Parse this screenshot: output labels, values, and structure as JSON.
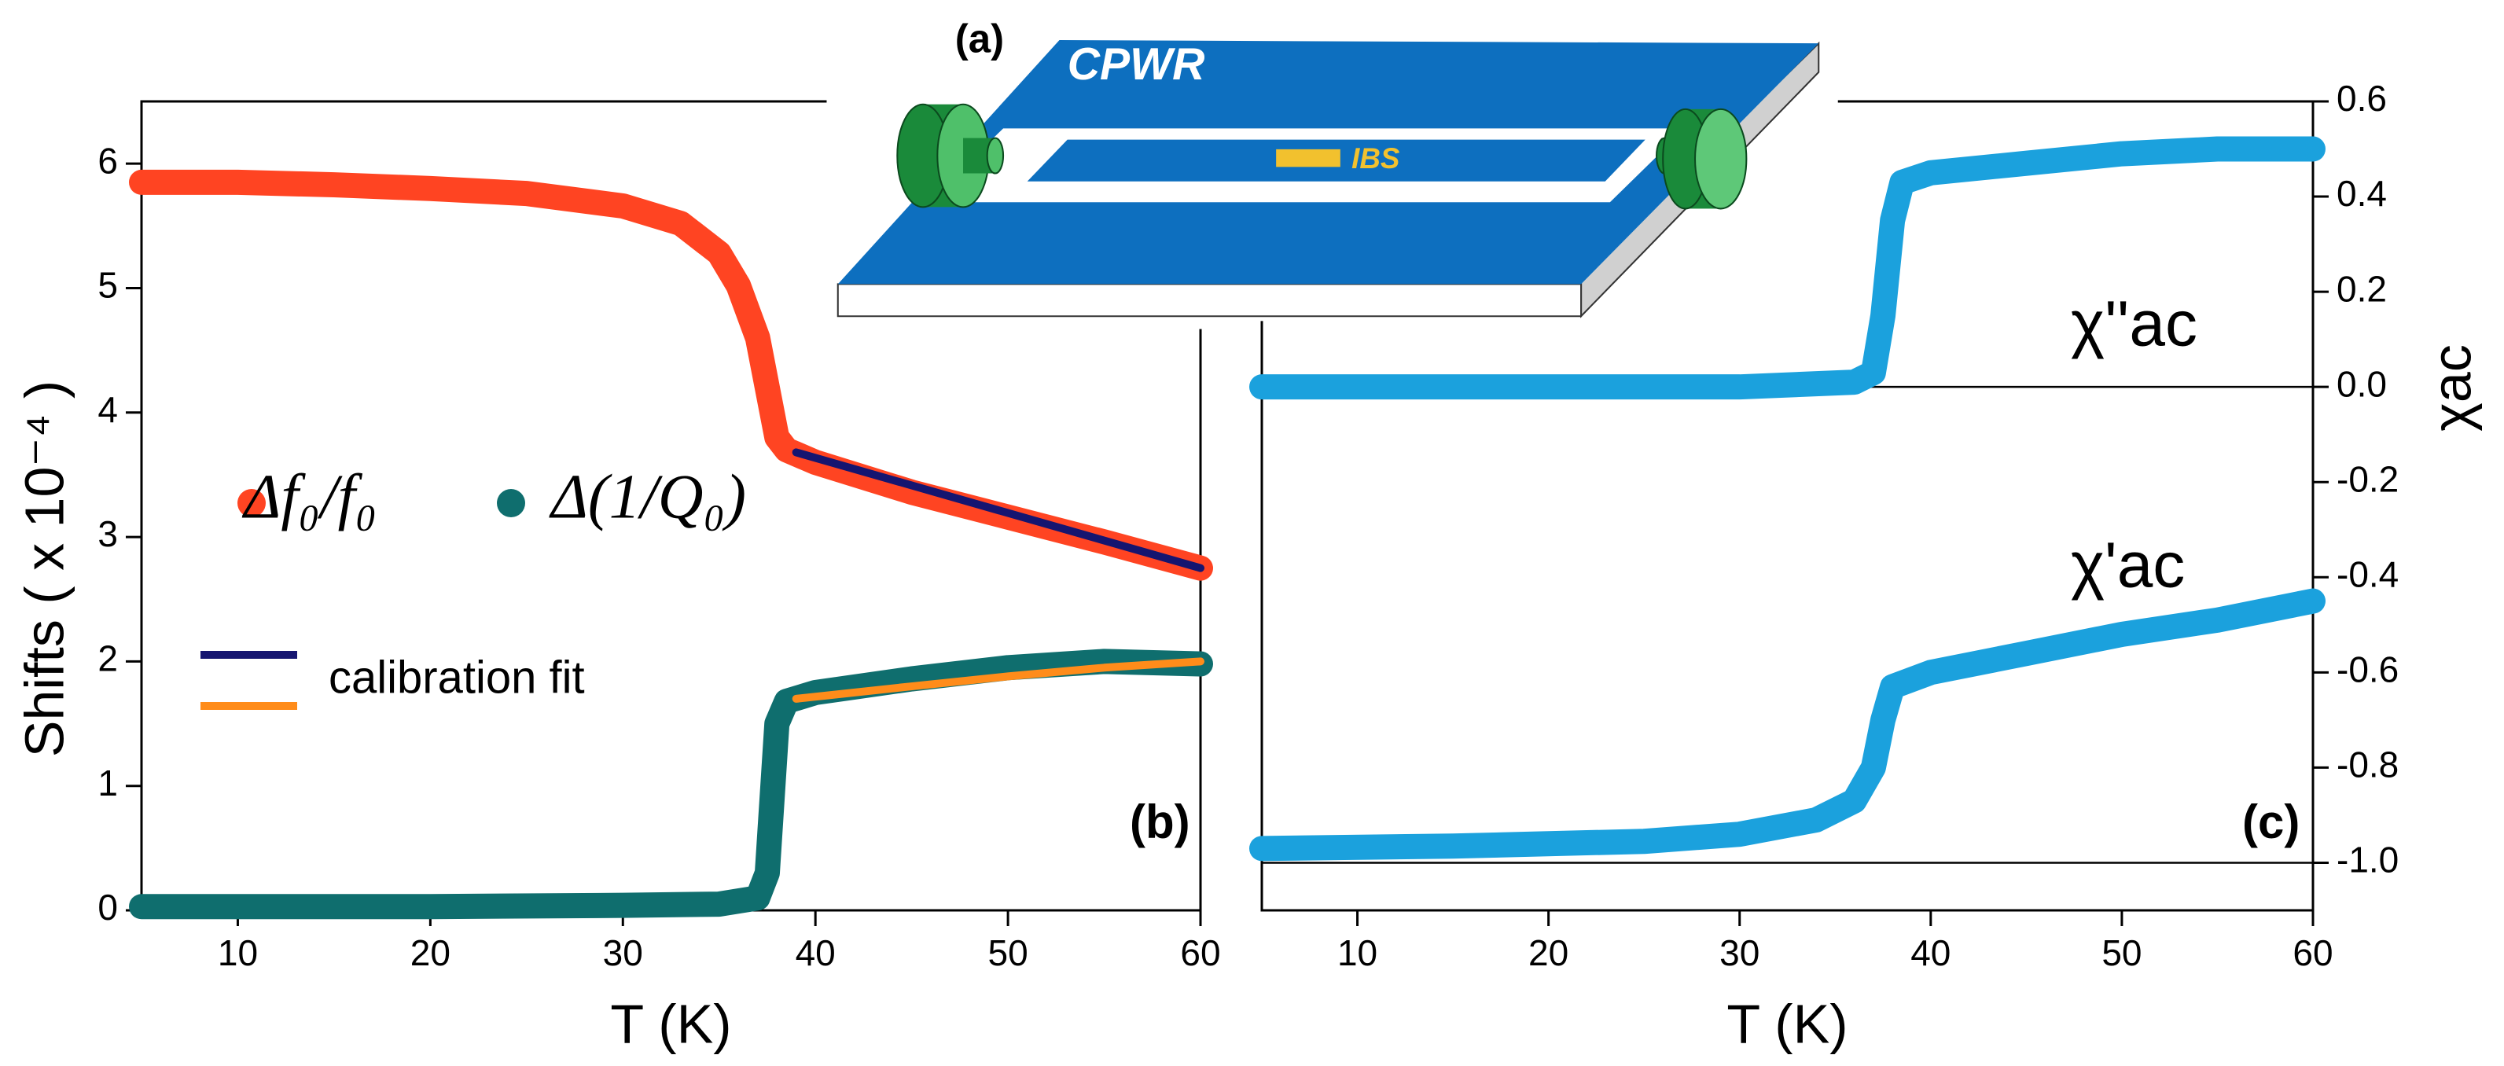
{
  "chart_data": [
    {
      "type": "line",
      "panel_label": "(b)",
      "xlabel": "T  (K)",
      "ylabel": "Shifts ( x 10⁻⁴ )",
      "xlim": [
        5,
        60
      ],
      "xticks": [
        10,
        20,
        30,
        40,
        50,
        60
      ],
      "ylim": [
        0,
        6.5
      ],
      "yticks": [
        0,
        1,
        2,
        3,
        4,
        5,
        6
      ],
      "series": [
        {
          "name": "Δf₀/f₀",
          "color": "#ff4422",
          "x": [
            5,
            10,
            15,
            20,
            25,
            30,
            33,
            35,
            36,
            37,
            37.5,
            38,
            38.5,
            40,
            45,
            50,
            55,
            60
          ],
          "values": [
            5.85,
            5.85,
            5.83,
            5.8,
            5.76,
            5.66,
            5.52,
            5.28,
            5.02,
            4.6,
            4.2,
            3.8,
            3.7,
            3.6,
            3.36,
            3.16,
            2.96,
            2.75
          ]
        },
        {
          "name": "Δ(1/Q₀)",
          "color": "#0f6e6e",
          "x": [
            5,
            10,
            20,
            30,
            35,
            37,
            37.5,
            38,
            38.5,
            40,
            45,
            50,
            55,
            60
          ],
          "values": [
            0.03,
            0.03,
            0.03,
            0.04,
            0.05,
            0.1,
            0.3,
            1.5,
            1.68,
            1.75,
            1.86,
            1.95,
            2.0,
            1.98
          ]
        }
      ],
      "fits": {
        "label": "calibration fit",
        "series": [
          {
            "color": "#151570",
            "x": [
              39,
              60
            ],
            "values": [
              3.68,
              2.75
            ]
          },
          {
            "color": "#ff8c1a",
            "x": [
              39,
              45,
              50,
              55,
              60
            ],
            "values": [
              1.7,
              1.8,
              1.88,
              1.95,
              2.0
            ]
          }
        ]
      }
    },
    {
      "type": "line",
      "panel_label": "(c)",
      "xlabel": "T  (K)",
      "ylabel": "χac",
      "yaxis_side": "right",
      "xlim": [
        5,
        60
      ],
      "xticks": [
        10,
        20,
        30,
        40,
        50,
        60
      ],
      "ylim": [
        -1.1,
        0.6
      ],
      "yticks": [
        {
          "value": -1,
          "label": "-1.0"
        },
        -0.8,
        -0.6,
        -0.4,
        -0.2,
        {
          "value": 0,
          "label": "0.0"
        },
        0.2,
        0.4,
        0.6
      ],
      "reference_lines": [
        0,
        -1
      ],
      "series": [
        {
          "name": "χ''ac",
          "color": "#1ba1dd",
          "x": [
            5,
            10,
            20,
            30,
            36,
            37,
            37.5,
            38,
            38.5,
            40,
            45,
            50,
            55,
            60
          ],
          "values": [
            0.0,
            0.0,
            0.0,
            0.0,
            0.01,
            0.03,
            0.15,
            0.35,
            0.43,
            0.45,
            0.47,
            0.49,
            0.5,
            0.5
          ]
        },
        {
          "name": "χ'ac",
          "color": "#1ba1dd",
          "x": [
            5,
            15,
            25,
            30,
            34,
            36,
            37,
            37.5,
            38,
            40,
            45,
            50,
            55,
            60
          ],
          "values": [
            -0.97,
            -0.965,
            -0.955,
            -0.94,
            -0.91,
            -0.87,
            -0.8,
            -0.7,
            -0.63,
            -0.6,
            -0.56,
            -0.52,
            -0.49,
            -0.45
          ]
        }
      ]
    }
  ],
  "inset": {
    "label": "(a)",
    "board": "CPWR",
    "sample": "IBS"
  }
}
